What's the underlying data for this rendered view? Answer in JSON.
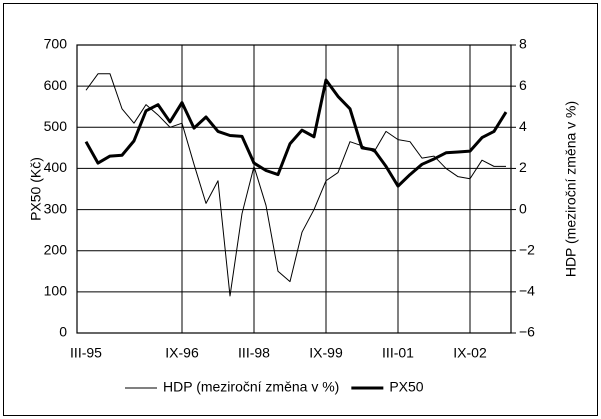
{
  "chart_data": {
    "type": "line",
    "categories": [
      "III-95",
      null,
      null,
      null,
      null,
      null,
      null,
      null,
      "IX-96",
      null,
      null,
      null,
      null,
      null,
      "III-98",
      null,
      null,
      null,
      null,
      null,
      "IX-99",
      null,
      null,
      null,
      null,
      null,
      "III-01",
      null,
      null,
      null,
      null,
      null,
      "IX-02",
      null,
      null,
      null
    ],
    "series": [
      {
        "name": "HDP (meziroční změna v %)",
        "color": "#000000",
        "width": 1,
        "axis": "y2",
        "values": [
          5.8,
          6.6,
          6.6,
          4.9,
          4.2,
          5.1,
          4.6,
          4.0,
          4.2,
          2.2,
          0.3,
          1.4,
          -4.2,
          -0.2,
          2.1,
          0.2,
          -3.0,
          -3.5,
          -1.1,
          0,
          1.4,
          1.8,
          3.3,
          3.1,
          2.8,
          3.8,
          3.4,
          3.3,
          2.5,
          2.6,
          2.0,
          1.6,
          1.5,
          2.4,
          2.1,
          2.1
        ]
      },
      {
        "name": "PX50",
        "color": "#000000",
        "width": 3,
        "values": [
          465,
          413,
          430,
          432,
          467,
          540,
          555,
          513,
          560,
          498,
          525,
          490,
          480,
          478,
          413,
          395,
          385,
          460,
          493,
          477,
          615,
          575,
          545,
          450,
          445,
          405,
          357,
          385,
          410,
          423,
          438,
          440,
          442,
          475,
          490,
          537
        ]
      }
    ],
    "ylabel": "PX50 (Kč)",
    "y2label": "HDP (meziroční změna v %)",
    "ylim": [
      0,
      700
    ],
    "yticks": [
      0,
      100,
      200,
      300,
      400,
      500,
      600,
      700
    ],
    "y2lim": [
      -6,
      8
    ],
    "y2ticks": [
      {
        "value": -6,
        "label": "−6"
      },
      {
        "value": -4,
        "label": "−4"
      },
      {
        "value": -2,
        "label": "−2"
      },
      0,
      2,
      4,
      6,
      8
    ],
    "grid": true,
    "legend": "bottom"
  }
}
